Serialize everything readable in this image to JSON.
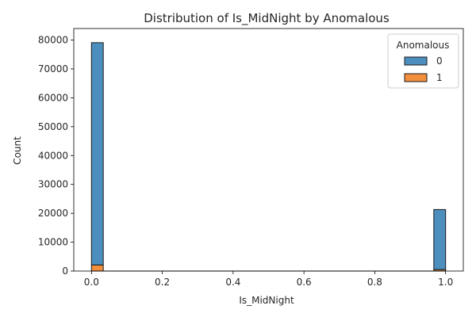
{
  "chart_data": {
    "type": "bar",
    "subtype": "stacked-histogram",
    "title": "Distribution of Is_MidNight by Anomalous",
    "xlabel": "Is_MidNight",
    "ylabel": "Count",
    "xlim": [
      -0.05,
      1.05
    ],
    "ylim": [
      0,
      84000
    ],
    "xticks": [
      "0.0",
      "0.2",
      "0.4",
      "0.6",
      "0.8",
      "1.0"
    ],
    "yticks": [
      "0",
      "10000",
      "20000",
      "30000",
      "40000",
      "50000",
      "60000",
      "70000",
      "80000"
    ],
    "bins": [
      {
        "x_start": 0.0,
        "x_end": 0.0333
      },
      {
        "x_start": 0.9667,
        "x_end": 1.0
      }
    ],
    "series": [
      {
        "name": "0",
        "color": "#4c8ebd",
        "values": [
          77000,
          20800
        ]
      },
      {
        "name": "1",
        "color": "#f28e3c",
        "values": [
          2100,
          500
        ]
      }
    ],
    "legend": {
      "title": "Anomalous",
      "position": "top-right",
      "entries": [
        "0",
        "1"
      ]
    },
    "grid": false
  }
}
